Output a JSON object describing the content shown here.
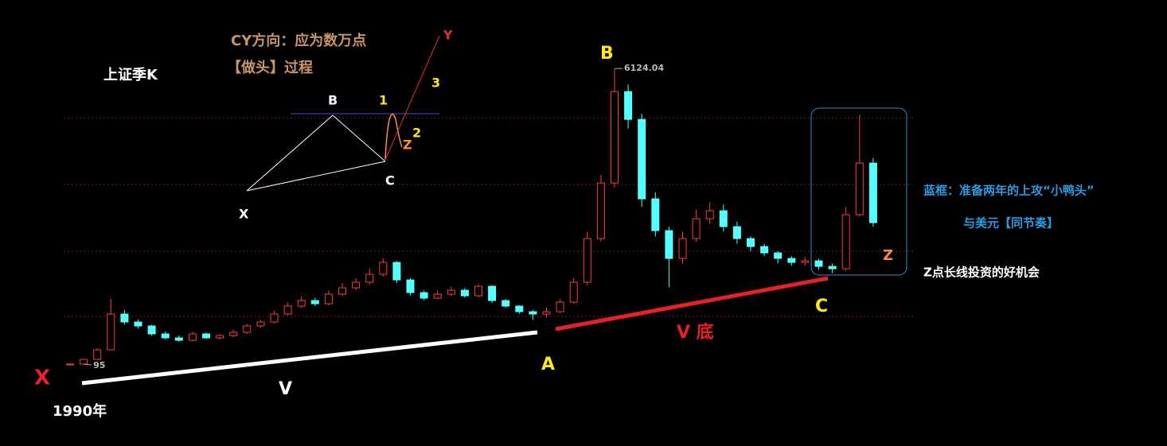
{
  "chart_data": {
    "type": "candlestick",
    "title": "上证季K",
    "open": [
      96,
      97,
      194,
      389,
      1118,
      956,
      875,
      713,
      632,
      583,
      713,
      632,
      680,
      745,
      875,
      956,
      1118,
      1280,
      1393,
      1328,
      1523,
      1652,
      1766,
      1928,
      2171,
      1814,
      1555,
      1442,
      1523,
      1604,
      1490,
      1685,
      1393,
      1280,
      1166,
      1118,
      1166,
      1361,
      1766,
      2657,
      3791,
      5654,
      5087,
      3467,
      2819,
      2252,
      2657,
      3062,
      3224,
      2900,
      2657,
      2495,
      2365,
      2252,
      2171,
      2203,
      2090,
      2041,
      3143,
      4196
    ],
    "high": [
      110,
      210,
      420,
      1430,
      1200,
      1000,
      900,
      760,
      680,
      760,
      740,
      720,
      800,
      920,
      1000,
      1180,
      1350,
      1480,
      1450,
      1600,
      1750,
      1850,
      2050,
      2250,
      2200,
      1850,
      1600,
      1600,
      1680,
      1650,
      1720,
      1700,
      1420,
      1300,
      1200,
      1250,
      1420,
      1850,
      2800,
      3950,
      6124.04,
      5800,
      5200,
      3600,
      2900,
      2800,
      3250,
      3400,
      3350,
      3000,
      2700,
      2550,
      2400,
      2300,
      2280,
      2250,
      2150,
      3300,
      5178,
      4300
    ],
    "low": [
      95.79,
      95,
      190,
      380,
      900,
      820,
      680,
      600,
      550,
      560,
      610,
      600,
      650,
      720,
      840,
      930,
      1090,
      1240,
      1280,
      1300,
      1480,
      1600,
      1720,
      1880,
      1750,
      1500,
      1400,
      1420,
      1480,
      1450,
      1460,
      1350,
      1250,
      1120,
      998,
      1050,
      1140,
      1330,
      1700,
      2600,
      3700,
      4900,
      3300,
      2700,
      1664,
      2150,
      2600,
      2950,
      2800,
      2550,
      2400,
      2300,
      2150,
      2100,
      2100,
      2020,
      1950,
      2000,
      3100,
      2900
    ],
    "close": [
      97,
      194,
      389,
      1118,
      956,
      875,
      713,
      632,
      583,
      713,
      632,
      680,
      745,
      875,
      956,
      1118,
      1280,
      1393,
      1328,
      1523,
      1652,
      1766,
      1928,
      2171,
      1814,
      1555,
      1442,
      1523,
      1604,
      1490,
      1685,
      1393,
      1280,
      1166,
      1118,
      1166,
      1361,
      1766,
      2657,
      3791,
      5654,
      5087,
      3467,
      2819,
      2252,
      2657,
      3062,
      3224,
      2900,
      2657,
      2495,
      2365,
      2252,
      2171,
      2203,
      2090,
      2041,
      3143,
      4196,
      2981
    ],
    "up_color": "#ff3b3b",
    "down_color": "#54ffff",
    "ylim": [
      0,
      6500
    ],
    "yticks": [
      1069,
      2398,
      3758,
      5119
    ],
    "grid": true,
    "annotations": [
      "CY方向：应为数万点",
      "【做头】过程",
      "B",
      "1",
      "3",
      "2",
      "Z",
      "C",
      "X",
      "Y",
      "B",
      "X",
      "1990年",
      "V",
      "A",
      "V 底",
      "C",
      "Z",
      "蓝框：准备两年的上攻“小鸭头”",
      "与美元【同节奏】",
      "Z点长线投资的好机会"
    ]
  }
}
